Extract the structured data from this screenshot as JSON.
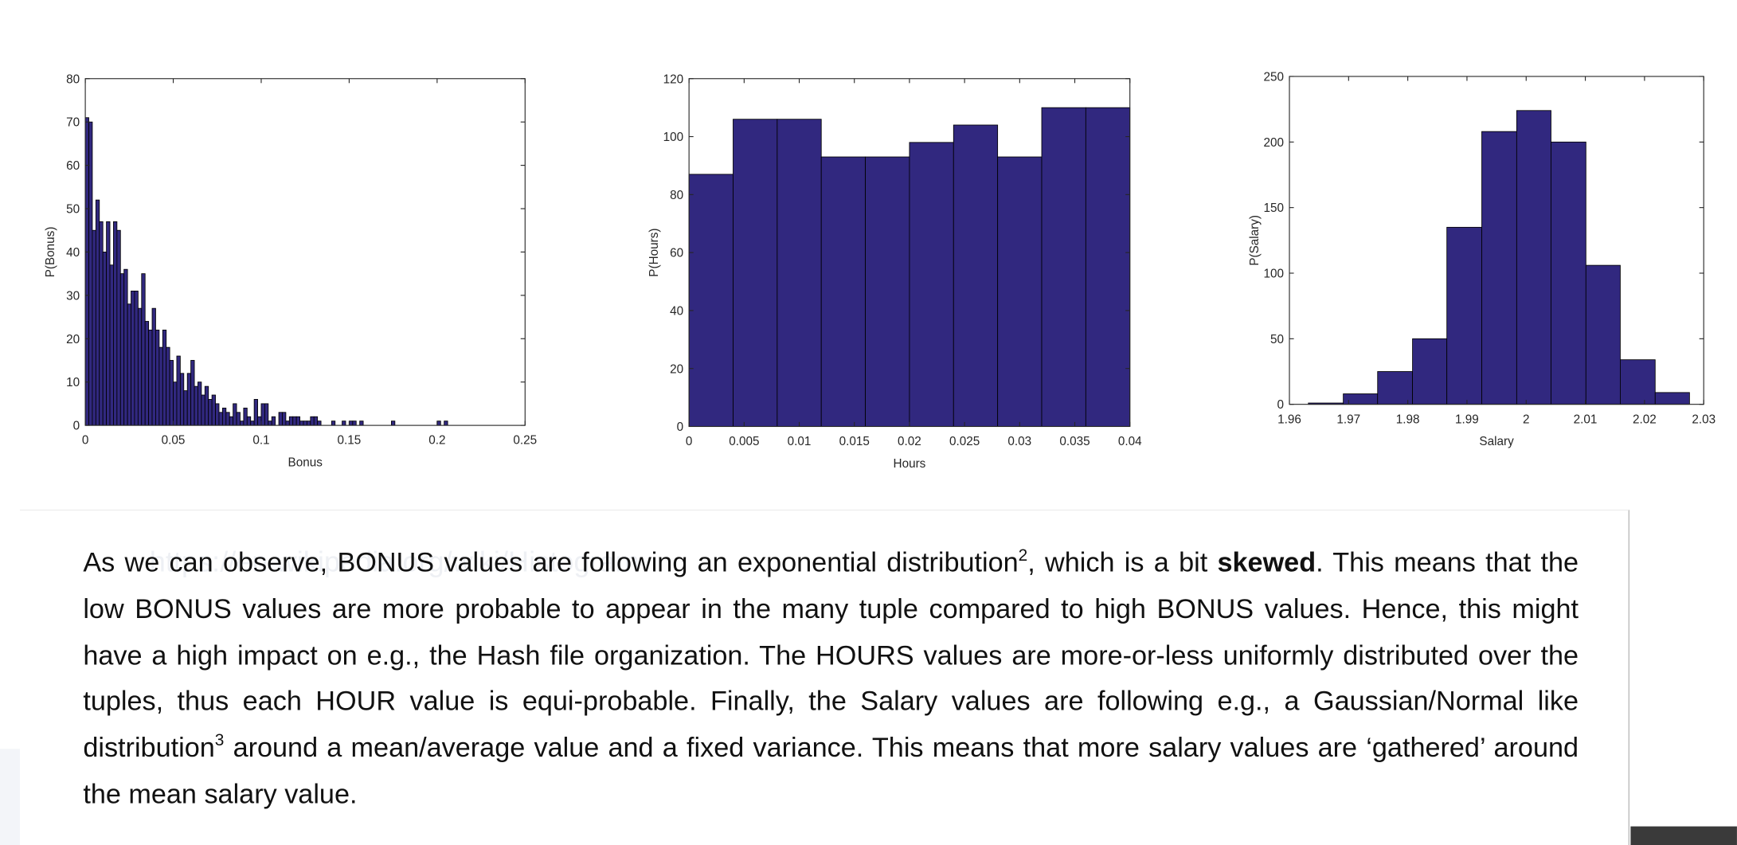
{
  "chart_data": [
    {
      "type": "histogram",
      "xlabel": "Bonus",
      "ylabel": "P(Bonus)",
      "color": "#31287f",
      "xlim": [
        0,
        0.25
      ],
      "ylim": [
        0,
        80
      ],
      "xticks": [
        0,
        0.05,
        0.1,
        0.15,
        0.2,
        0.25
      ],
      "yticks": [
        0,
        10,
        20,
        30,
        40,
        50,
        60,
        70,
        80
      ],
      "bins": [
        0,
        0.002,
        0.004,
        0.006,
        0.008,
        0.01,
        0.012,
        0.014,
        0.016,
        0.018,
        0.02,
        0.022,
        0.024,
        0.026,
        0.028,
        0.03,
        0.032,
        0.034,
        0.036,
        0.038,
        0.04,
        0.042,
        0.044,
        0.046,
        0.048,
        0.05,
        0.052,
        0.054,
        0.056,
        0.058,
        0.06,
        0.062,
        0.064,
        0.066,
        0.068,
        0.07,
        0.072,
        0.074,
        0.076,
        0.078,
        0.08,
        0.082,
        0.084,
        0.086,
        0.088,
        0.09,
        0.092,
        0.094,
        0.096,
        0.098,
        0.1,
        0.102,
        0.104,
        0.106,
        0.108,
        0.11,
        0.112,
        0.114,
        0.116,
        0.118,
        0.12,
        0.122,
        0.124,
        0.126,
        0.128,
        0.13,
        0.132,
        0.134,
        0.136,
        0.138,
        0.14,
        0.142,
        0.144,
        0.146,
        0.148,
        0.15,
        0.152,
        0.154,
        0.156,
        0.158,
        0.16,
        0.162,
        0.164,
        0.166,
        0.168,
        0.17,
        0.172,
        0.174,
        0.176,
        0.178,
        0.18,
        0.182,
        0.184,
        0.186,
        0.188,
        0.19,
        0.192,
        0.194,
        0.196,
        0.198,
        0.2,
        0.202,
        0.204,
        0.206,
        0.208,
        0.21
      ],
      "values": [
        71,
        70,
        45,
        52,
        47,
        40,
        47,
        37,
        47,
        45,
        35,
        36,
        28,
        31,
        31,
        27,
        35,
        24,
        22,
        27,
        22,
        18,
        22,
        18,
        15,
        10,
        16,
        12,
        8,
        12,
        15,
        9,
        10,
        7,
        9,
        6,
        7,
        5,
        3,
        4,
        3,
        2,
        5,
        3,
        1,
        4,
        2,
        1,
        6,
        2,
        5,
        5,
        1,
        2,
        0,
        3,
        3,
        1,
        2,
        2,
        2,
        1,
        1,
        1,
        2,
        2,
        1,
        0,
        0,
        0,
        1,
        0,
        0,
        1,
        0,
        1,
        1,
        0,
        1,
        0,
        0,
        0,
        0,
        0,
        0,
        0,
        0,
        1,
        0,
        0,
        0,
        0,
        0,
        0,
        0,
        0,
        0,
        0,
        0,
        0,
        1,
        0,
        1,
        0,
        0
      ]
    },
    {
      "type": "histogram",
      "xlabel": "Hours",
      "ylabel": "P(Hours)",
      "color": "#31287f",
      "xlim": [
        0,
        0.04
      ],
      "ylim": [
        0,
        120
      ],
      "xticks": [
        0,
        0.005,
        0.01,
        0.015,
        0.02,
        0.025,
        0.03,
        0.035,
        0.04
      ],
      "yticks": [
        0,
        20,
        40,
        60,
        80,
        100,
        120
      ],
      "bins": [
        0,
        0.004,
        0.008,
        0.012,
        0.016,
        0.02,
        0.024,
        0.028,
        0.032,
        0.036,
        0.04
      ],
      "values": [
        87,
        106,
        106,
        93,
        93,
        98,
        104,
        93,
        110,
        110
      ]
    },
    {
      "type": "histogram",
      "xlabel": "Salary",
      "ylabel": "P(Salary)",
      "color": "#31287f",
      "xlim": [
        1.96,
        2.03
      ],
      "ylim": [
        0,
        250
      ],
      "xticks": [
        1.96,
        1.97,
        1.98,
        1.99,
        2,
        2.01,
        2.02,
        2.03
      ],
      "yticks": [
        0,
        50,
        100,
        150,
        200,
        250
      ],
      "bins": [
        1.9632,
        1.9691,
        1.9749,
        1.9808,
        1.9866,
        1.9925,
        1.9984,
        2.0042,
        2.0101,
        2.0159,
        2.0218,
        2.0276
      ],
      "values": [
        1,
        8,
        25,
        50,
        135,
        208,
        224,
        200,
        106,
        34,
        9
      ]
    }
  ],
  "text": {
    "ghost_link": "https://en.wikipedia.org/wiki/Histogram",
    "paragraph": [
      "As we can observe, BONUS values are following an exponential distribution",
      "2",
      ", which is a bit ",
      "skewed",
      ". This means that the low BONUS values are more probable to appear in the many tuple compared to high BONUS values. Hence, this might have a high impact on e.g., the Hash file organization. The HOURS values are more-or-less uniformly distributed over the tuples, thus each HOUR value is equi-probable. Finally, the Salary values are following e.g., a Gaussian/Normal like distribution",
      "3",
      " around a mean/average value and a fixed variance. This means that more salary values are ‘gathered’ around the mean salary value."
    ]
  }
}
